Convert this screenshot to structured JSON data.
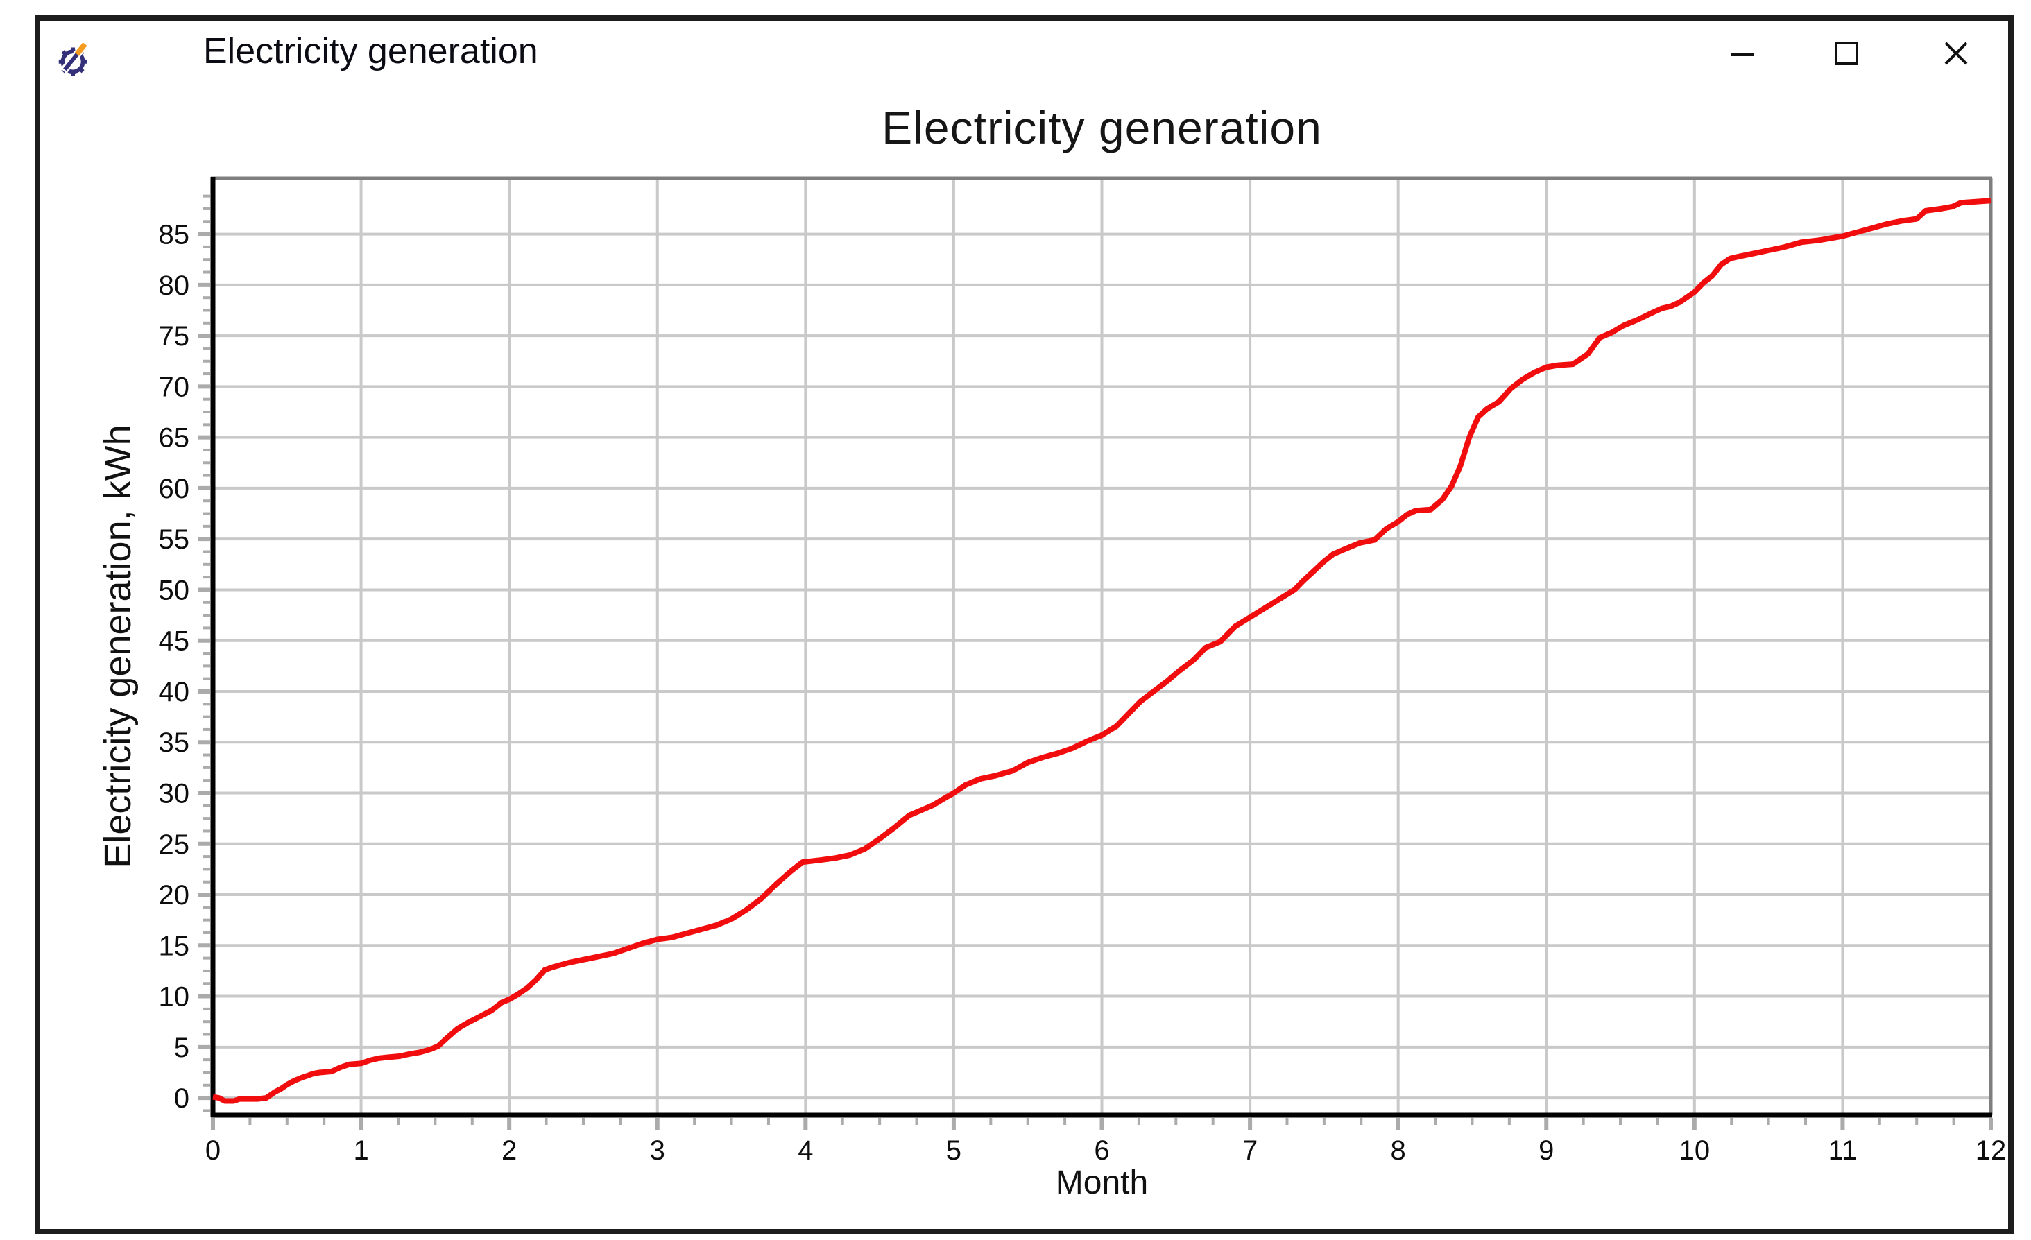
{
  "window": {
    "title": "Electricity generation",
    "icon": "app-gear-pencil-icon",
    "controls": {
      "minimize": "minimize",
      "maximize": "maximize",
      "close": "close"
    }
  },
  "chart_data": {
    "type": "line",
    "title": "Electricity generation",
    "xlabel": "Month",
    "ylabel": "Electricity generation, kWh",
    "xlim": [
      0,
      12
    ],
    "ylim": [
      -1.7,
      90.5
    ],
    "x_ticks": [
      0,
      1,
      2,
      3,
      4,
      5,
      6,
      7,
      8,
      9,
      10,
      11,
      12
    ],
    "y_ticks": [
      0,
      5,
      10,
      15,
      20,
      25,
      30,
      35,
      40,
      45,
      50,
      55,
      60,
      65,
      70,
      75,
      80,
      85
    ],
    "x_minor_step": 0.25,
    "y_minor_step": 1.25,
    "grid": true,
    "legend": "none",
    "colors": {
      "line": "#f10d0d",
      "grid": "#c9c9c9",
      "axis": "#000000",
      "frame": "#7f7f7f",
      "tick": "#ababab",
      "text": "#0d0d0d"
    },
    "series": [
      {
        "name": "Electricity generation",
        "points": [
          [
            0,
            0.1
          ],
          [
            0.04,
            0
          ],
          [
            0.08,
            -0.3
          ],
          [
            0.14,
            -0.3
          ],
          [
            0.18,
            -0.1
          ],
          [
            0.3,
            -0.1
          ],
          [
            0.36,
            0
          ],
          [
            0.42,
            0.6
          ],
          [
            0.46,
            0.9
          ],
          [
            0.5,
            1.3
          ],
          [
            0.55,
            1.7
          ],
          [
            0.6,
            2
          ],
          [
            0.64,
            2.2
          ],
          [
            0.68,
            2.4
          ],
          [
            0.72,
            2.5
          ],
          [
            0.8,
            2.6
          ],
          [
            0.86,
            3
          ],
          [
            0.92,
            3.3
          ],
          [
            1,
            3.4
          ],
          [
            1.06,
            3.7
          ],
          [
            1.12,
            3.9
          ],
          [
            1.18,
            4
          ],
          [
            1.26,
            4.1
          ],
          [
            1.32,
            4.3
          ],
          [
            1.4,
            4.5
          ],
          [
            1.47,
            4.8
          ],
          [
            1.52,
            5.1
          ],
          [
            1.58,
            5.9
          ],
          [
            1.65,
            6.8
          ],
          [
            1.72,
            7.4
          ],
          [
            1.8,
            8
          ],
          [
            1.88,
            8.6
          ],
          [
            1.95,
            9.4
          ],
          [
            2,
            9.7
          ],
          [
            2.06,
            10.2
          ],
          [
            2.12,
            10.8
          ],
          [
            2.18,
            11.6
          ],
          [
            2.24,
            12.6
          ],
          [
            2.3,
            12.9
          ],
          [
            2.4,
            13.3
          ],
          [
            2.5,
            13.6
          ],
          [
            2.6,
            13.9
          ],
          [
            2.7,
            14.2
          ],
          [
            2.8,
            14.7
          ],
          [
            2.9,
            15.2
          ],
          [
            3,
            15.6
          ],
          [
            3.1,
            15.8
          ],
          [
            3.2,
            16.2
          ],
          [
            3.3,
            16.6
          ],
          [
            3.4,
            17
          ],
          [
            3.5,
            17.6
          ],
          [
            3.6,
            18.5
          ],
          [
            3.7,
            19.6
          ],
          [
            3.8,
            21
          ],
          [
            3.9,
            22.3
          ],
          [
            3.98,
            23.2
          ],
          [
            4.1,
            23.4
          ],
          [
            4.2,
            23.6
          ],
          [
            4.3,
            23.9
          ],
          [
            4.4,
            24.5
          ],
          [
            4.5,
            25.5
          ],
          [
            4.6,
            26.6
          ],
          [
            4.7,
            27.8
          ],
          [
            4.78,
            28.3
          ],
          [
            4.86,
            28.8
          ],
          [
            4.94,
            29.5
          ],
          [
            5,
            30
          ],
          [
            5.08,
            30.8
          ],
          [
            5.18,
            31.4
          ],
          [
            5.28,
            31.7
          ],
          [
            5.4,
            32.2
          ],
          [
            5.5,
            33
          ],
          [
            5.6,
            33.5
          ],
          [
            5.7,
            33.9
          ],
          [
            5.8,
            34.4
          ],
          [
            5.9,
            35.1
          ],
          [
            6,
            35.7
          ],
          [
            6.1,
            36.6
          ],
          [
            6.18,
            37.8
          ],
          [
            6.26,
            39
          ],
          [
            6.34,
            39.9
          ],
          [
            6.44,
            41
          ],
          [
            6.52,
            42
          ],
          [
            6.62,
            43.1
          ],
          [
            6.7,
            44.3
          ],
          [
            6.8,
            44.9
          ],
          [
            6.9,
            46.4
          ],
          [
            7,
            47.3
          ],
          [
            7.1,
            48.2
          ],
          [
            7.2,
            49.1
          ],
          [
            7.3,
            50
          ],
          [
            7.36,
            50.9
          ],
          [
            7.42,
            51.7
          ],
          [
            7.5,
            52.8
          ],
          [
            7.56,
            53.5
          ],
          [
            7.64,
            54
          ],
          [
            7.74,
            54.6
          ],
          [
            7.84,
            54.9
          ],
          [
            7.92,
            56
          ],
          [
            8,
            56.7
          ],
          [
            8.06,
            57.4
          ],
          [
            8.12,
            57.8
          ],
          [
            8.22,
            57.9
          ],
          [
            8.3,
            58.9
          ],
          [
            8.36,
            60.2
          ],
          [
            8.42,
            62.2
          ],
          [
            8.48,
            65
          ],
          [
            8.54,
            67
          ],
          [
            8.6,
            67.8
          ],
          [
            8.68,
            68.5
          ],
          [
            8.76,
            69.8
          ],
          [
            8.84,
            70.7
          ],
          [
            8.92,
            71.4
          ],
          [
            9,
            71.9
          ],
          [
            9.08,
            72.1
          ],
          [
            9.18,
            72.2
          ],
          [
            9.28,
            73.2
          ],
          [
            9.36,
            74.8
          ],
          [
            9.44,
            75.3
          ],
          [
            9.52,
            76
          ],
          [
            9.62,
            76.6
          ],
          [
            9.72,
            77.3
          ],
          [
            9.78,
            77.7
          ],
          [
            9.84,
            77.9
          ],
          [
            9.9,
            78.3
          ],
          [
            9.96,
            78.9
          ],
          [
            10,
            79.3
          ],
          [
            10.06,
            80.2
          ],
          [
            10.12,
            80.9
          ],
          [
            10.18,
            82
          ],
          [
            10.24,
            82.6
          ],
          [
            10.3,
            82.8
          ],
          [
            10.4,
            83.1
          ],
          [
            10.5,
            83.4
          ],
          [
            10.6,
            83.7
          ],
          [
            10.72,
            84.2
          ],
          [
            10.84,
            84.4
          ],
          [
            10.92,
            84.6
          ],
          [
            11,
            84.8
          ],
          [
            11.1,
            85.2
          ],
          [
            11.2,
            85.6
          ],
          [
            11.3,
            86
          ],
          [
            11.4,
            86.3
          ],
          [
            11.5,
            86.5
          ],
          [
            11.56,
            87.3
          ],
          [
            11.66,
            87.5
          ],
          [
            11.74,
            87.7
          ],
          [
            11.8,
            88.1
          ],
          [
            11.9,
            88.2
          ],
          [
            12,
            88.3
          ]
        ]
      }
    ]
  }
}
